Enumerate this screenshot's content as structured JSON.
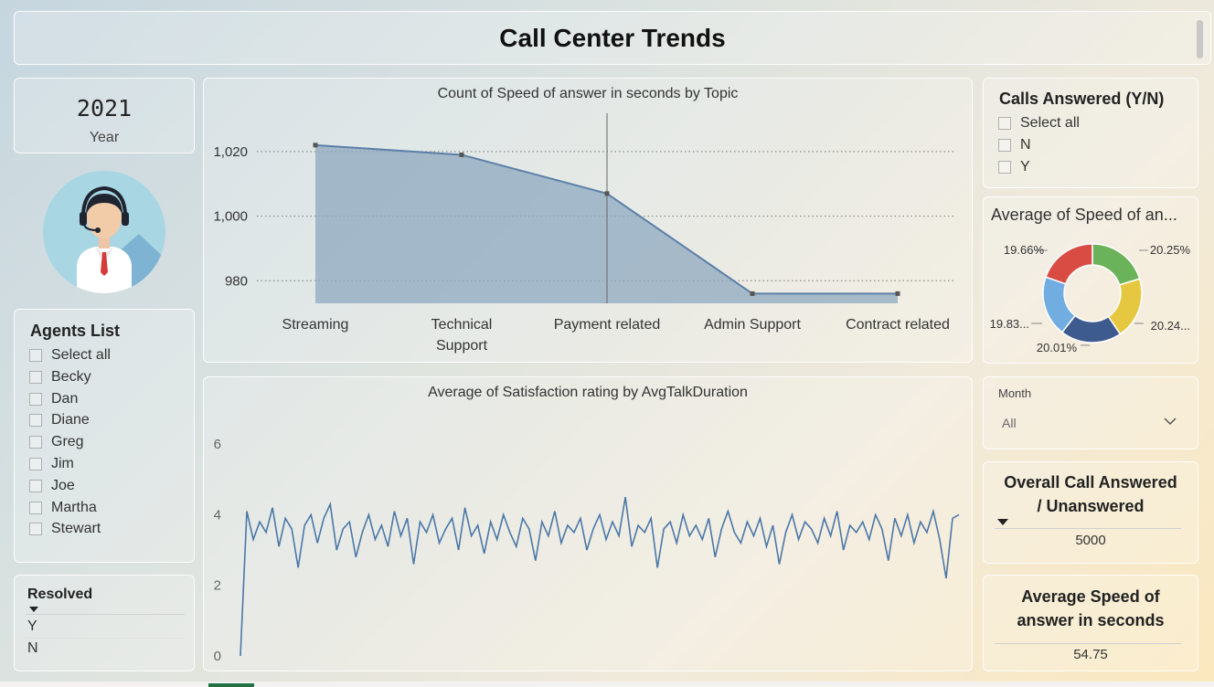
{
  "header": {
    "title": "Call Center Trends"
  },
  "year_card": {
    "value": "2021",
    "label": "Year"
  },
  "agents": {
    "title": "Agents List",
    "items": [
      "Select all",
      "Becky",
      "Dan",
      "Diane",
      "Greg",
      "Jim",
      "Joe",
      "Martha",
      "Stewart"
    ]
  },
  "resolved": {
    "title": "Resolved",
    "items": [
      "Y",
      "N"
    ]
  },
  "calls_answered": {
    "title": "Calls Answered (Y/N)",
    "items": [
      "Select all",
      "N",
      "Y"
    ]
  },
  "month_filter": {
    "label": "Month",
    "value": "All"
  },
  "overall": {
    "title_line1": "Overall Call Answered",
    "title_line2": "/ Unanswered",
    "value": "5000"
  },
  "avg_speed": {
    "title_line1": "Average Speed of",
    "title_line2": "answer in seconds",
    "value": "54.75"
  },
  "chart_data": [
    {
      "type": "area",
      "title": "Count of Speed of answer in seconds by Topic",
      "categories": [
        "Streaming",
        "Technical Support",
        "Payment related",
        "Admin Support",
        "Contract related"
      ],
      "category_lines": [
        [
          "Streaming"
        ],
        [
          "Technical",
          "Support"
        ],
        [
          "Payment related"
        ],
        [
          "Admin Support"
        ],
        [
          "Contract related"
        ]
      ],
      "values": [
        1022,
        1019,
        1007,
        976,
        976
      ],
      "yticks": [
        "1,020",
        "1,000",
        "980"
      ],
      "ytick_values": [
        1020,
        1000,
        980
      ],
      "ylim": [
        973,
        1033
      ],
      "color": "#5b7fa8"
    },
    {
      "type": "pie",
      "title": "Average of Speed of an...",
      "slices": [
        {
          "value": 20.25,
          "label": "20.25%",
          "color": "#6bb35a"
        },
        {
          "value": 20.24,
          "label": "20.24...",
          "color": "#e6c840"
        },
        {
          "value": 20.01,
          "label": "20.01%",
          "color": "#3e5b8f"
        },
        {
          "value": 19.83,
          "label": "19.83...",
          "color": "#72ade2"
        },
        {
          "value": 19.66,
          "label": "19.66%",
          "color": "#d94c44"
        }
      ]
    },
    {
      "type": "line",
      "title": "Average of Satisfaction rating by AvgTalkDuration",
      "yticks": [
        "6",
        "4",
        "2",
        "0"
      ],
      "ytick_values": [
        6,
        4,
        2,
        0
      ],
      "ylim": [
        0,
        6.6
      ],
      "color": "#4a78a8",
      "series": [
        {
          "values": [
            0,
            4.1,
            3.3,
            3.8,
            3.5,
            4.2,
            3.1,
            3.9,
            3.6,
            2.5,
            3.7,
            4.0,
            3.2,
            3.9,
            4.3,
            3.0,
            3.6,
            3.8,
            2.8,
            3.5,
            4.0,
            3.3,
            3.7,
            3.1,
            4.1,
            3.4,
            3.9,
            2.6,
            3.8,
            3.5,
            4.0,
            3.2,
            3.6,
            3.9,
            3.0,
            4.2,
            3.4,
            3.7,
            2.9,
            3.8,
            3.3,
            4.0,
            3.5,
            3.1,
            3.9,
            3.6,
            2.7,
            3.8,
            3.4,
            4.1,
            3.2,
            3.7,
            3.5,
            3.9,
            3.0,
            3.6,
            4.0,
            3.3,
            3.8,
            3.4,
            4.5,
            3.1,
            3.7,
            3.5,
            3.9,
            2.5,
            3.6,
            3.8,
            3.2,
            4.0,
            3.4,
            3.7,
            3.3,
            3.9,
            2.8,
            3.6,
            4.1,
            3.5,
            3.2,
            3.8,
            3.4,
            3.9,
            3.1,
            3.7,
            2.6,
            3.5,
            4.0,
            3.3,
            3.8,
            3.6,
            3.2,
            3.9,
            3.4,
            4.1,
            3.0,
            3.7,
            3.5,
            3.8,
            3.3,
            4.0,
            3.6,
            2.7,
            3.9,
            3.4,
            4.0,
            3.2,
            3.8,
            3.5,
            4.1,
            3.3,
            2.2,
            3.9,
            4.0
          ]
        }
      ]
    }
  ]
}
